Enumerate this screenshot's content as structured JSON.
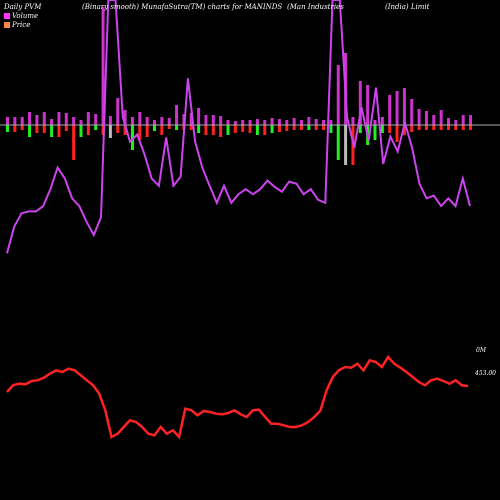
{
  "header": {
    "left": "Daily PVM",
    "center": "(Binary smooth) MunafaSutra(TM) charts for MANINDS",
    "company": "(Man Industries",
    "company2": "(India) Limit"
  },
  "legend": [
    {
      "label": "Volume",
      "color": "#ff33ff"
    },
    {
      "label": "Price",
      "color": "#ff8844"
    }
  ],
  "axis_labels": {
    "volume_right": "0M",
    "price_right": "453.00"
  },
  "colors": {
    "background": "#000000",
    "volume_line": "#cc44ee",
    "price_line": "#ff2222",
    "bar_up": "#cc33cc",
    "bar_down": "#ff2222",
    "bar_green": "#22ee22",
    "bar_gray": "#bbbbbb",
    "baseline": "#aaaaaa"
  },
  "chart_data": {
    "type": "line",
    "series": [
      {
        "name": "Volume",
        "values": [
          10,
          18,
          24,
          25,
          25,
          28,
          40,
          63,
          50,
          33,
          28,
          20,
          15,
          22,
          2000,
          2000,
          180,
          108,
          125,
          83,
          50,
          43,
          118,
          43,
          52,
          400,
          108,
          63,
          43,
          30,
          43,
          30,
          36,
          40,
          36,
          40,
          48,
          42,
          38,
          47,
          45,
          36,
          40,
          32,
          30,
          2000,
          2000,
          180,
          95,
          220,
          110,
          330,
          68,
          120,
          88,
          160,
          95,
          45,
          33,
          35,
          28,
          33,
          28,
          50,
          28
        ]
      },
      {
        "name": "Price",
        "values": [
          435,
          455,
          460,
          458,
          468,
          470,
          478,
          490,
          500,
          495,
          505,
          500,
          485,
          470,
          455,
          430,
          380,
          300,
          310,
          330,
          350,
          345,
          330,
          310,
          305,
          330,
          310,
          320,
          300,
          385,
          380,
          365,
          378,
          375,
          370,
          368,
          372,
          380,
          368,
          360,
          380,
          382,
          360,
          340,
          340,
          335,
          330,
          330,
          335,
          345,
          360,
          380,
          440,
          480,
          500,
          510,
          508,
          520,
          500,
          530,
          525,
          510,
          540,
          520,
          508,
          495,
          480,
          465,
          455,
          470,
          475,
          468,
          460,
          470,
          455,
          453
        ]
      }
    ],
    "bars": {
      "top_heights": [
        8,
        8,
        8,
        13,
        10,
        13,
        6,
        13,
        12,
        8,
        5,
        13,
        11,
        118,
        9,
        27,
        15,
        8,
        13,
        8,
        5,
        8,
        7,
        20,
        11,
        12,
        17,
        10,
        10,
        9,
        5,
        4,
        5,
        5,
        6,
        5,
        7,
        6,
        5,
        7,
        5,
        8,
        6,
        5,
        5,
        60,
        72,
        8,
        44,
        40,
        5,
        8,
        30,
        34,
        37,
        26,
        16,
        14,
        10,
        15,
        7,
        5,
        10,
        10
      ],
      "bottom_heights": [
        7,
        7,
        5,
        12,
        8,
        8,
        12,
        12,
        6,
        35,
        12,
        10,
        5,
        10,
        13,
        8,
        10,
        25,
        15,
        12,
        6,
        10,
        4,
        5,
        5,
        5,
        8,
        10,
        10,
        12,
        10,
        8,
        7,
        8,
        10,
        10,
        8,
        7,
        6,
        5,
        5,
        5,
        5,
        5,
        8,
        35,
        40,
        40,
        8,
        20,
        15,
        8,
        8,
        17,
        10,
        7,
        5,
        5,
        5,
        5,
        5,
        5,
        5,
        5
      ],
      "bottom_colors": [
        "green",
        "red",
        "red",
        "green",
        "red",
        "red",
        "green",
        "red",
        "red",
        "red",
        "green",
        "red",
        "green",
        "red",
        "gray",
        "red",
        "red",
        "green",
        "red",
        "red",
        "green",
        "red",
        "red",
        "green",
        "red",
        "red",
        "green",
        "red",
        "red",
        "red",
        "green",
        "red",
        "red",
        "red",
        "green",
        "red",
        "green",
        "red",
        "red",
        "red",
        "red",
        "green",
        "red",
        "red",
        "green",
        "green",
        "gray",
        "red",
        "green",
        "green",
        "green",
        "green",
        "red",
        "red",
        "red",
        "red",
        "red",
        "red",
        "red",
        "red",
        "red",
        "red",
        "red",
        "red"
      ],
      "top_colors": [
        "up",
        "up",
        "up",
        "up",
        "up",
        "up",
        "up",
        "up",
        "up",
        "up",
        "up",
        "up",
        "up",
        "up",
        "up",
        "up",
        "up",
        "up",
        "up",
        "up",
        "up",
        "up",
        "up",
        "up",
        "up",
        "up",
        "up",
        "up",
        "up",
        "up",
        "up",
        "up",
        "up",
        "up",
        "up",
        "up",
        "up",
        "up",
        "up",
        "up",
        "up",
        "up",
        "up",
        "up",
        "up",
        "up",
        "up",
        "up",
        "up",
        "up",
        "up",
        "up",
        "up",
        "up",
        "up",
        "up",
        "up",
        "up",
        "up",
        "up",
        "up",
        "up",
        "up",
        "up"
      ]
    }
  }
}
